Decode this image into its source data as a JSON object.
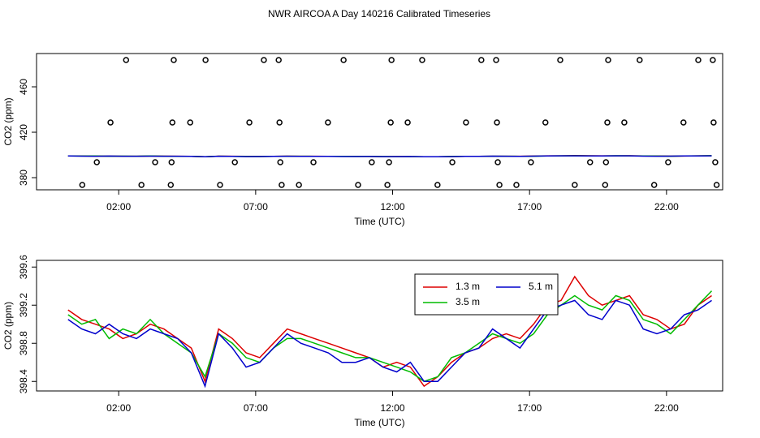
{
  "chart_data": [
    {
      "type": "line",
      "title": "NWR AIRCOA A  Day 140216  Calibrated Timeseries",
      "xlabel": "Time (UTC)",
      "ylabel": "CO2 (ppm)",
      "xlim": [
        -1.0,
        24.05
      ],
      "ylim": [
        369.3,
        489.3
      ],
      "xticks": [
        {
          "value": 2,
          "label": "02:00"
        },
        {
          "value": 7,
          "label": "07:00"
        },
        {
          "value": 12,
          "label": "12:00"
        },
        {
          "value": 17,
          "label": "17:00"
        },
        {
          "value": 22,
          "label": "22:00"
        }
      ],
      "yticks": [
        380,
        420,
        460
      ],
      "x": [
        0.15,
        0.65,
        1.15,
        1.65,
        2.15,
        2.65,
        3.15,
        3.65,
        4.15,
        4.65,
        5.15,
        5.65,
        6.15,
        6.65,
        7.15,
        7.65,
        8.15,
        8.65,
        9.15,
        9.65,
        10.15,
        10.65,
        11.15,
        11.65,
        12.15,
        12.65,
        13.15,
        13.65,
        14.15,
        14.65,
        15.15,
        15.65,
        16.15,
        16.65,
        17.15,
        17.65,
        18.15,
        18.65,
        19.15,
        19.65,
        20.15,
        20.65,
        21.15,
        21.65,
        22.15,
        22.65,
        23.15,
        23.65
      ],
      "series": [
        {
          "color": "#dd0000",
          "values": [
            399.15,
            399.05,
            399.0,
            398.95,
            398.85,
            398.9,
            399.0,
            398.95,
            398.85,
            398.75,
            398.4,
            398.95,
            398.85,
            398.7,
            398.65,
            398.8,
            398.95,
            398.9,
            398.85,
            398.8,
            398.75,
            398.7,
            398.65,
            398.55,
            398.6,
            398.55,
            398.35,
            398.45,
            398.6,
            398.7,
            398.75,
            398.85,
            398.9,
            398.85,
            399.0,
            399.2,
            399.25,
            399.5,
            399.3,
            399.2,
            399.25,
            399.3,
            399.1,
            399.05,
            398.95,
            399.0,
            399.2,
            399.3
          ]
        },
        {
          "color": "#00bb00",
          "values": [
            399.1,
            399.0,
            399.05,
            398.85,
            398.95,
            398.9,
            399.05,
            398.9,
            398.8,
            398.7,
            398.45,
            398.9,
            398.8,
            398.65,
            398.6,
            398.75,
            398.85,
            398.85,
            398.8,
            398.75,
            398.7,
            398.65,
            398.65,
            398.6,
            398.55,
            398.5,
            398.4,
            398.45,
            398.65,
            398.7,
            398.8,
            398.9,
            398.85,
            398.8,
            398.9,
            399.1,
            399.2,
            399.3,
            399.2,
            399.15,
            399.3,
            399.25,
            399.05,
            399.0,
            398.9,
            399.05,
            399.2,
            399.35
          ]
        },
        {
          "color": "#0000cc",
          "values": [
            399.05,
            398.95,
            398.9,
            399.0,
            398.9,
            398.85,
            398.95,
            398.9,
            398.85,
            398.7,
            398.35,
            398.9,
            398.75,
            398.55,
            398.6,
            398.75,
            398.9,
            398.8,
            398.75,
            398.7,
            398.6,
            398.6,
            398.65,
            398.55,
            398.5,
            398.6,
            398.4,
            398.4,
            398.55,
            398.7,
            398.75,
            398.95,
            398.85,
            398.75,
            398.95,
            399.15,
            399.2,
            399.25,
            399.1,
            399.05,
            399.25,
            399.2,
            398.95,
            398.9,
            398.95,
            399.1,
            399.15,
            399.25
          ]
        }
      ],
      "points": {
        "color": "#000000",
        "x": [
          2.27,
          4.01,
          5.17,
          7.3,
          7.84,
          10.21,
          11.96,
          13.08,
          15.24,
          15.78,
          18.12,
          19.87,
          21.02,
          23.16,
          23.69,
          1.7,
          3.96,
          4.61,
          6.77,
          7.87,
          9.64,
          11.93,
          12.55,
          14.68,
          15.81,
          17.58,
          19.84,
          20.46,
          22.62,
          23.72,
          1.2,
          3.33,
          3.93,
          6.24,
          7.9,
          9.11,
          11.24,
          11.87,
          14.18,
          15.84,
          17.05,
          19.21,
          19.79,
          22.06,
          23.78,
          0.67,
          2.83,
          3.9,
          5.7,
          7.95,
          8.58,
          10.74,
          11.81,
          13.64,
          15.9,
          16.52,
          18.65,
          19.76,
          21.55,
          23.83
        ],
        "y": [
          483.6,
          483.6,
          483.6,
          483.6,
          483.6,
          483.6,
          483.6,
          483.6,
          483.6,
          483.6,
          483.6,
          483.6,
          483.6,
          483.6,
          483.6,
          428.6,
          428.6,
          428.6,
          428.6,
          428.6,
          428.6,
          428.6,
          428.6,
          428.6,
          428.6,
          428.6,
          428.6,
          428.6,
          428.6,
          428.6,
          393.6,
          393.6,
          393.6,
          393.6,
          393.6,
          393.6,
          393.6,
          393.6,
          393.6,
          393.6,
          393.6,
          393.6,
          393.6,
          393.6,
          393.6,
          373.6,
          373.6,
          373.6,
          373.6,
          373.6,
          373.6,
          373.6,
          373.6,
          373.6,
          373.6,
          373.6,
          373.6,
          373.6,
          373.6,
          373.6
        ]
      }
    },
    {
      "type": "line",
      "xlabel": "Time (UTC)",
      "ylabel": "CO2 (ppm)",
      "xlim": [
        -1.0,
        24.05
      ],
      "ylim": [
        398.3,
        399.67
      ],
      "xticks": [
        {
          "value": 2,
          "label": "02:00"
        },
        {
          "value": 7,
          "label": "07:00"
        },
        {
          "value": 12,
          "label": "12:00"
        },
        {
          "value": 17,
          "label": "17:00"
        },
        {
          "value": 22,
          "label": "22:00"
        }
      ],
      "yticks": [
        398.4,
        398.8,
        399.2,
        399.6
      ],
      "legend": "top-right",
      "x": [
        0.15,
        0.65,
        1.15,
        1.65,
        2.15,
        2.65,
        3.15,
        3.65,
        4.15,
        4.65,
        5.15,
        5.65,
        6.15,
        6.65,
        7.15,
        7.65,
        8.15,
        8.65,
        9.15,
        9.65,
        10.15,
        10.65,
        11.15,
        11.65,
        12.15,
        12.65,
        13.15,
        13.65,
        14.15,
        14.65,
        15.15,
        15.65,
        16.15,
        16.65,
        17.15,
        17.65,
        18.15,
        18.65,
        19.15,
        19.65,
        20.15,
        20.65,
        21.15,
        21.65,
        22.15,
        22.65,
        23.15,
        23.65
      ],
      "series": [
        {
          "name": "1.3 m",
          "color": "#dd0000",
          "values": [
            399.15,
            399.05,
            399.0,
            398.95,
            398.85,
            398.9,
            399.0,
            398.95,
            398.85,
            398.75,
            398.4,
            398.95,
            398.85,
            398.7,
            398.65,
            398.8,
            398.95,
            398.9,
            398.85,
            398.8,
            398.75,
            398.7,
            398.65,
            398.55,
            398.6,
            398.55,
            398.35,
            398.45,
            398.6,
            398.7,
            398.75,
            398.85,
            398.9,
            398.85,
            399.0,
            399.2,
            399.25,
            399.5,
            399.3,
            399.2,
            399.25,
            399.3,
            399.1,
            399.05,
            398.95,
            399.0,
            399.2,
            399.3
          ]
        },
        {
          "name": "3.5 m",
          "color": "#00bb00",
          "values": [
            399.1,
            399.0,
            399.05,
            398.85,
            398.95,
            398.9,
            399.05,
            398.9,
            398.8,
            398.7,
            398.45,
            398.9,
            398.8,
            398.65,
            398.6,
            398.75,
            398.85,
            398.85,
            398.8,
            398.75,
            398.7,
            398.65,
            398.65,
            398.6,
            398.55,
            398.5,
            398.4,
            398.45,
            398.65,
            398.7,
            398.8,
            398.9,
            398.85,
            398.8,
            398.9,
            399.1,
            399.2,
            399.3,
            399.2,
            399.15,
            399.3,
            399.25,
            399.05,
            399.0,
            398.9,
            399.05,
            399.2,
            399.35
          ]
        },
        {
          "name": "5.1 m",
          "color": "#0000cc",
          "values": [
            399.05,
            398.95,
            398.9,
            399.0,
            398.9,
            398.85,
            398.95,
            398.9,
            398.85,
            398.7,
            398.35,
            398.9,
            398.75,
            398.55,
            398.6,
            398.75,
            398.9,
            398.8,
            398.75,
            398.7,
            398.6,
            398.6,
            398.65,
            398.55,
            398.5,
            398.6,
            398.4,
            398.4,
            398.55,
            398.7,
            398.75,
            398.95,
            398.85,
            398.75,
            398.95,
            399.15,
            399.2,
            399.25,
            399.1,
            399.05,
            399.25,
            399.2,
            398.95,
            398.9,
            398.95,
            399.1,
            399.15,
            399.25
          ]
        }
      ]
    }
  ]
}
